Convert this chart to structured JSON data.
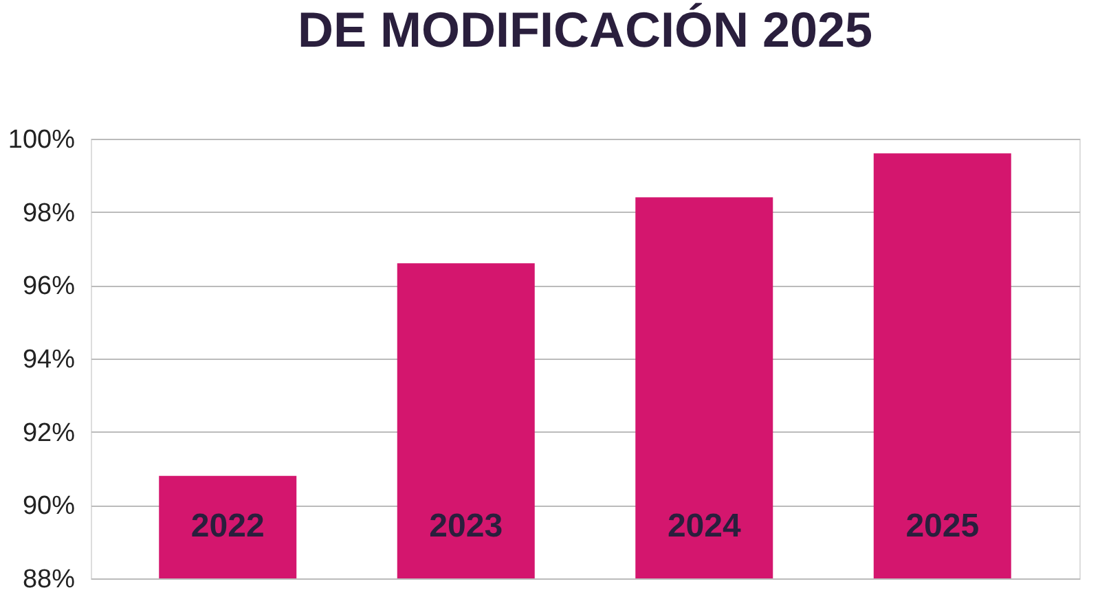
{
  "chart_data": {
    "type": "bar",
    "title": "DE MODIFICACIÓN 2025",
    "categories": [
      "2022",
      "2023",
      "2024",
      "2025"
    ],
    "values": [
      90.8,
      96.6,
      98.4,
      99.6
    ],
    "color": "#d4166e",
    "ylim": [
      88,
      100
    ],
    "yticks": [
      {
        "value": 88,
        "label": "88%"
      },
      {
        "value": 90,
        "label": "90%"
      },
      {
        "value": 92,
        "label": "92%"
      },
      {
        "value": 94,
        "label": "94%"
      },
      {
        "value": 96,
        "label": "96%"
      },
      {
        "value": 98,
        "label": "98%"
      },
      {
        "value": 100,
        "label": "100%"
      }
    ],
    "grid": "y"
  }
}
